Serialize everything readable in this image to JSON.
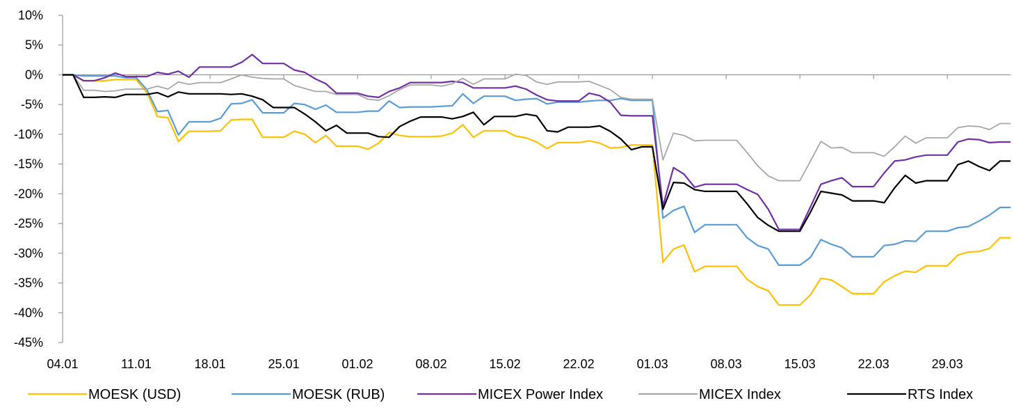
{
  "chart_data": {
    "type": "line",
    "title": "",
    "xlabel": "",
    "ylabel": "",
    "ylim": [
      -45,
      10
    ],
    "y_ticks": [
      "10%",
      "5%",
      "0%",
      "-5%",
      "-10%",
      "-15%",
      "-20%",
      "-25%",
      "-30%",
      "-35%",
      "-40%",
      "-45%"
    ],
    "y_tick_values": [
      10,
      5,
      0,
      -5,
      -10,
      -15,
      -20,
      -25,
      -30,
      -35,
      -40,
      -45
    ],
    "x_ticks": [
      "04.01",
      "11.01",
      "18.01",
      "25.01",
      "01.02",
      "08.02",
      "15.02",
      "22.02",
      "01.03",
      "08.03",
      "15.03",
      "22.03",
      "29.03"
    ],
    "x_tick_days": [
      0,
      7,
      14,
      21,
      28,
      35,
      42,
      49,
      56,
      63,
      70,
      77,
      84
    ],
    "x_max_day": 90,
    "grid": false,
    "legend_position": "bottom",
    "series": [
      {
        "name": "MOESK (USD)",
        "color": "#FFC000",
        "x": [
          0,
          1,
          2,
          3,
          4,
          5,
          6,
          7,
          8,
          9,
          10,
          11,
          12,
          13,
          14,
          15,
          16,
          17,
          18,
          19,
          20,
          21,
          22,
          23,
          24,
          25,
          26,
          27,
          28,
          29,
          30,
          31,
          32,
          33,
          34,
          35,
          36,
          37,
          38,
          39,
          40,
          41,
          42,
          43,
          44,
          45,
          46,
          47,
          48,
          49,
          50,
          51,
          52,
          53,
          54,
          55,
          56,
          57,
          58,
          59,
          60,
          61,
          62,
          63,
          64,
          65,
          66,
          67,
          68,
          69,
          70,
          71,
          72,
          73,
          74,
          75,
          76,
          77,
          78,
          79,
          80,
          81,
          82,
          83,
          84,
          85,
          86,
          87,
          88,
          89,
          90
        ],
        "y": [
          0,
          0,
          -1,
          -1,
          -1,
          -0.8,
          -0.8,
          -0.8,
          -3,
          -7,
          -7.2,
          -11.2,
          -9.5,
          -9.5,
          -9.5,
          -9.4,
          -7.6,
          -7.5,
          -7.5,
          -10.5,
          -10.5,
          -10.5,
          -9.5,
          -10,
          -11.4,
          -10.2,
          -12,
          -12,
          -12,
          -12.5,
          -11.5,
          -9.7,
          -10.2,
          -10.4,
          -10.4,
          -10.4,
          -10.3,
          -9.8,
          -8.4,
          -10.5,
          -9.4,
          -9.4,
          -9.4,
          -10.3,
          -10.6,
          -11.3,
          -12.4,
          -11.4,
          -11.4,
          -11.4,
          -11.1,
          -11.5,
          -12.3,
          -12.2,
          -11.8,
          -11.8,
          -11.8,
          -31.5,
          -29.3,
          -28.6,
          -33.1,
          -32.2,
          -32.2,
          -32.2,
          -32.2,
          -34.4,
          -35.6,
          -36.3,
          -38.7,
          -38.7,
          -38.7,
          -37,
          -34.2,
          -34.5,
          -35.6,
          -36.8,
          -36.8,
          -36.8,
          -34.8,
          -33.8,
          -33,
          -33.2,
          -32.1,
          -32.1,
          -32.1,
          -30.3,
          -29.8,
          -29.7,
          -29.2,
          -27.4,
          -27.4
        ]
      },
      {
        "name": "MOESK (RUB)",
        "color": "#5B9BD5",
        "x": [
          0,
          1,
          2,
          3,
          4,
          5,
          6,
          7,
          8,
          9,
          10,
          11,
          12,
          13,
          14,
          15,
          16,
          17,
          18,
          19,
          20,
          21,
          22,
          23,
          24,
          25,
          26,
          27,
          28,
          29,
          30,
          31,
          32,
          33,
          34,
          35,
          36,
          37,
          38,
          39,
          40,
          41,
          42,
          43,
          44,
          45,
          46,
          47,
          48,
          49,
          50,
          51,
          52,
          53,
          54,
          55,
          56,
          57,
          58,
          59,
          60,
          61,
          62,
          63,
          64,
          65,
          66,
          67,
          68,
          69,
          70,
          71,
          72,
          73,
          74,
          75,
          76,
          77,
          78,
          79,
          80,
          81,
          82,
          83,
          84,
          85,
          86,
          87,
          88,
          89,
          90
        ],
        "y": [
          0,
          0,
          -0.2,
          -0.2,
          -0.2,
          -0.2,
          -0.5,
          -0.5,
          -2.5,
          -6.2,
          -6,
          -10.1,
          -7.9,
          -7.9,
          -7.9,
          -7.3,
          -4.9,
          -4.8,
          -4.2,
          -6.4,
          -6.4,
          -6.4,
          -4.8,
          -5,
          -5.8,
          -5.1,
          -6.3,
          -6.3,
          -6.3,
          -6.1,
          -6.1,
          -4.4,
          -5.5,
          -5.4,
          -5.4,
          -5.4,
          -5.3,
          -5.2,
          -3.2,
          -4.8,
          -3.6,
          -3.6,
          -3.6,
          -4.3,
          -4.1,
          -4,
          -4.9,
          -4.6,
          -4.6,
          -4.6,
          -4.4,
          -4.3,
          -4.3,
          -4,
          -4.3,
          -4.3,
          -4.3,
          -24.1,
          -22.8,
          -22.1,
          -26.5,
          -25.2,
          -25.2,
          -25.2,
          -25.2,
          -27.4,
          -28.7,
          -29.3,
          -32,
          -32,
          -32,
          -30.7,
          -27.7,
          -28.5,
          -29.1,
          -30.6,
          -30.6,
          -30.6,
          -28.7,
          -28.5,
          -27.9,
          -28,
          -26.3,
          -26.3,
          -26.3,
          -25.7,
          -25.5,
          -24.6,
          -23.6,
          -22.3,
          -22.3
        ]
      },
      {
        "name": "MICEX Power Index",
        "color": "#7030A0",
        "x": [
          0,
          1,
          2,
          3,
          4,
          5,
          6,
          7,
          8,
          9,
          10,
          11,
          12,
          13,
          14,
          15,
          16,
          17,
          18,
          19,
          20,
          21,
          22,
          23,
          24,
          25,
          26,
          27,
          28,
          29,
          30,
          31,
          32,
          33,
          34,
          35,
          36,
          37,
          38,
          39,
          40,
          41,
          42,
          43,
          44,
          45,
          46,
          47,
          48,
          49,
          50,
          51,
          52,
          53,
          54,
          55,
          56,
          57,
          58,
          59,
          60,
          61,
          62,
          63,
          64,
          65,
          66,
          67,
          68,
          69,
          70,
          71,
          72,
          73,
          74,
          75,
          76,
          77,
          78,
          79,
          80,
          81,
          82,
          83,
          84,
          85,
          86,
          87,
          88,
          89,
          90
        ],
        "y": [
          0,
          0,
          -1,
          -1,
          -0.5,
          0.3,
          -0.3,
          -0.3,
          -0.3,
          0.4,
          0.1,
          0.6,
          -0.4,
          1.3,
          1.3,
          1.3,
          1.3,
          2.1,
          3.4,
          1.9,
          1.9,
          1.9,
          0.8,
          0.4,
          -0.7,
          -1.5,
          -3.1,
          -3.1,
          -3.1,
          -3.6,
          -3.8,
          -2.8,
          -2.2,
          -1.3,
          -1.3,
          -1.3,
          -1.3,
          -1.1,
          -1.3,
          -2.2,
          -2.2,
          -2.2,
          -2.2,
          -1.9,
          -2.4,
          -3.4,
          -4.2,
          -4.4,
          -4.4,
          -4.4,
          -3.1,
          -3.5,
          -4.6,
          -6.8,
          -6.9,
          -6.9,
          -6.9,
          -22.1,
          -15.6,
          -16.7,
          -18.9,
          -18.4,
          -18.4,
          -18.4,
          -18.4,
          -19.3,
          -20.1,
          -22.6,
          -26,
          -26,
          -26,
          -22.2,
          -18.4,
          -17.8,
          -17.3,
          -18.8,
          -18.8,
          -18.8,
          -16.5,
          -14.5,
          -14.3,
          -13.8,
          -13.5,
          -13.5,
          -13.5,
          -11.3,
          -10.8,
          -10.9,
          -11.4,
          -11.3,
          -11.3
        ]
      },
      {
        "name": "MICEX Index",
        "color": "#A6A6A6",
        "x": [
          0,
          1,
          2,
          3,
          4,
          5,
          6,
          7,
          8,
          9,
          10,
          11,
          12,
          13,
          14,
          15,
          16,
          17,
          18,
          19,
          20,
          21,
          22,
          23,
          24,
          25,
          26,
          27,
          28,
          29,
          30,
          31,
          32,
          33,
          34,
          35,
          36,
          37,
          38,
          39,
          40,
          41,
          42,
          43,
          44,
          45,
          46,
          47,
          48,
          49,
          50,
          51,
          52,
          53,
          54,
          55,
          56,
          57,
          58,
          59,
          60,
          61,
          62,
          63,
          64,
          65,
          66,
          67,
          68,
          69,
          70,
          71,
          72,
          73,
          74,
          75,
          76,
          77,
          78,
          79,
          80,
          81,
          82,
          83,
          84,
          85,
          86,
          87,
          88,
          89,
          90
        ],
        "y": [
          0,
          0,
          -2.6,
          -2.6,
          -2.8,
          -2.7,
          -2.4,
          -2.4,
          -2.4,
          -1.9,
          -2.4,
          -1.2,
          -1.6,
          -1.3,
          -1.3,
          -1.3,
          -0.7,
          0,
          -0.4,
          -0.6,
          -0.7,
          -0.7,
          -1.8,
          -2.3,
          -2.8,
          -2.8,
          -3.3,
          -3.3,
          -3.3,
          -4.1,
          -4.3,
          -3.5,
          -2.5,
          -1.7,
          -1.7,
          -1.7,
          -1.9,
          -1.5,
          -0.6,
          -1.6,
          -0.7,
          -0.7,
          -0.7,
          0.1,
          -0.1,
          -1.2,
          -1.6,
          -1.2,
          -1.2,
          -1.2,
          -1.1,
          -1.8,
          -2.5,
          -3.8,
          -4.1,
          -4.1,
          -4.1,
          -14.3,
          -9.8,
          -10.2,
          -11.1,
          -11,
          -11,
          -11,
          -11,
          -13.1,
          -15.3,
          -17,
          -17.8,
          -17.8,
          -17.8,
          -14.5,
          -11.2,
          -12.3,
          -12.2,
          -13.1,
          -13.1,
          -13.1,
          -13.7,
          -12.1,
          -10.3,
          -11.5,
          -10.6,
          -10.6,
          -10.6,
          -8.9,
          -8.6,
          -8.7,
          -9.2,
          -8.2,
          -8.2
        ]
      },
      {
        "name": "RTS Index",
        "color": "#000000",
        "x": [
          0,
          1,
          2,
          3,
          4,
          5,
          6,
          7,
          8,
          9,
          10,
          11,
          12,
          13,
          14,
          15,
          16,
          17,
          18,
          19,
          20,
          21,
          22,
          23,
          24,
          25,
          26,
          27,
          28,
          29,
          30,
          31,
          32,
          33,
          34,
          35,
          36,
          37,
          38,
          39,
          40,
          41,
          42,
          43,
          44,
          45,
          46,
          47,
          48,
          49,
          50,
          51,
          52,
          53,
          54,
          55,
          56,
          57,
          58,
          59,
          60,
          61,
          62,
          63,
          64,
          65,
          66,
          67,
          68,
          69,
          70,
          71,
          72,
          73,
          74,
          75,
          76,
          77,
          78,
          79,
          80,
          81,
          82,
          83,
          84,
          85,
          86,
          87,
          88,
          89,
          90
        ],
        "y": [
          0,
          0,
          -3.8,
          -3.8,
          -3.7,
          -3.8,
          -3.3,
          -3.3,
          -3.3,
          -3,
          -3.7,
          -2.9,
          -3.2,
          -3.2,
          -3.2,
          -3.2,
          -3.3,
          -3.2,
          -3.6,
          -4.2,
          -5.5,
          -5.5,
          -5.5,
          -6.6,
          -7.9,
          -9.4,
          -8.5,
          -9.8,
          -9.8,
          -9.8,
          -10.4,
          -10.5,
          -8.7,
          -7.8,
          -7.1,
          -7.1,
          -7.1,
          -7.4,
          -7,
          -6.3,
          -8.4,
          -7,
          -7,
          -7,
          -6.6,
          -6.9,
          -9.4,
          -9.6,
          -8.8,
          -8.8,
          -8.8,
          -8.6,
          -9.5,
          -10.8,
          -12.6,
          -12.1,
          -12.1,
          -22.6,
          -18.1,
          -18.2,
          -19.3,
          -19.6,
          -19.6,
          -19.6,
          -19.6,
          -21.7,
          -24,
          -25.3,
          -26.3,
          -26.3,
          -26.3,
          -23.1,
          -19.6,
          -19.9,
          -20.2,
          -21.2,
          -21.2,
          -21.2,
          -21.5,
          -19,
          -16.9,
          -18.2,
          -17.8,
          -17.8,
          -17.8,
          -15.1,
          -14.5,
          -15.4,
          -16.1,
          -14.5,
          -14.5
        ]
      }
    ]
  }
}
